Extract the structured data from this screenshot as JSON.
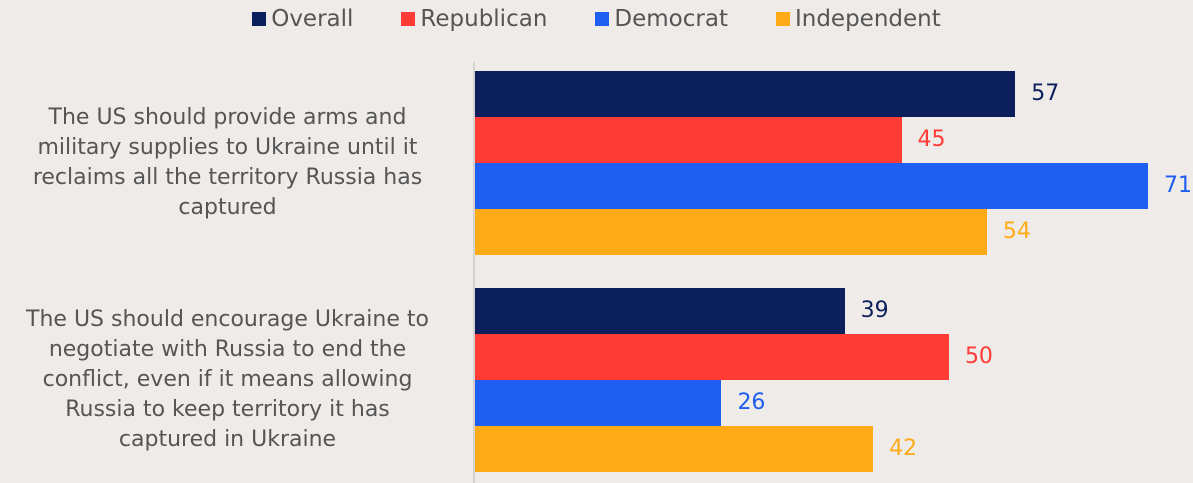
{
  "chart_data": {
    "type": "bar",
    "orientation": "horizontal",
    "categories": [
      "The US should provide arms and military supplies to Ukraine until it reclaims all the territory Russia has captured",
      "The US should encourage Ukraine to negotiate with Russia to end the conflict, even if it means allowing Russia to keep territory it has captured in Ukraine"
    ],
    "category_lines": [
      [
        "The US should provide arms and",
        "military supplies to Ukraine until it",
        "reclaims all the territory Russia has",
        "captured"
      ],
      [
        "The US should encourage Ukraine to",
        "negotiate with Russia to end the",
        "conflict, even if it means allowing",
        "Russia to keep territory it has",
        "captured in Ukraine"
      ]
    ],
    "series": [
      {
        "name": "Overall",
        "color": "#0b1f5c",
        "values": [
          57,
          39
        ]
      },
      {
        "name": "Republican",
        "color": "#ff3b36",
        "values": [
          45,
          50
        ]
      },
      {
        "name": "Democrat",
        "color": "#1e5ef0",
        "values": [
          71,
          26
        ]
      },
      {
        "name": "Independent",
        "color": "#ffab18",
        "values": [
          54,
          42
        ]
      }
    ],
    "xlim": [
      0,
      71
    ],
    "legend_position": "top",
    "grid": false,
    "data_labels": true
  }
}
